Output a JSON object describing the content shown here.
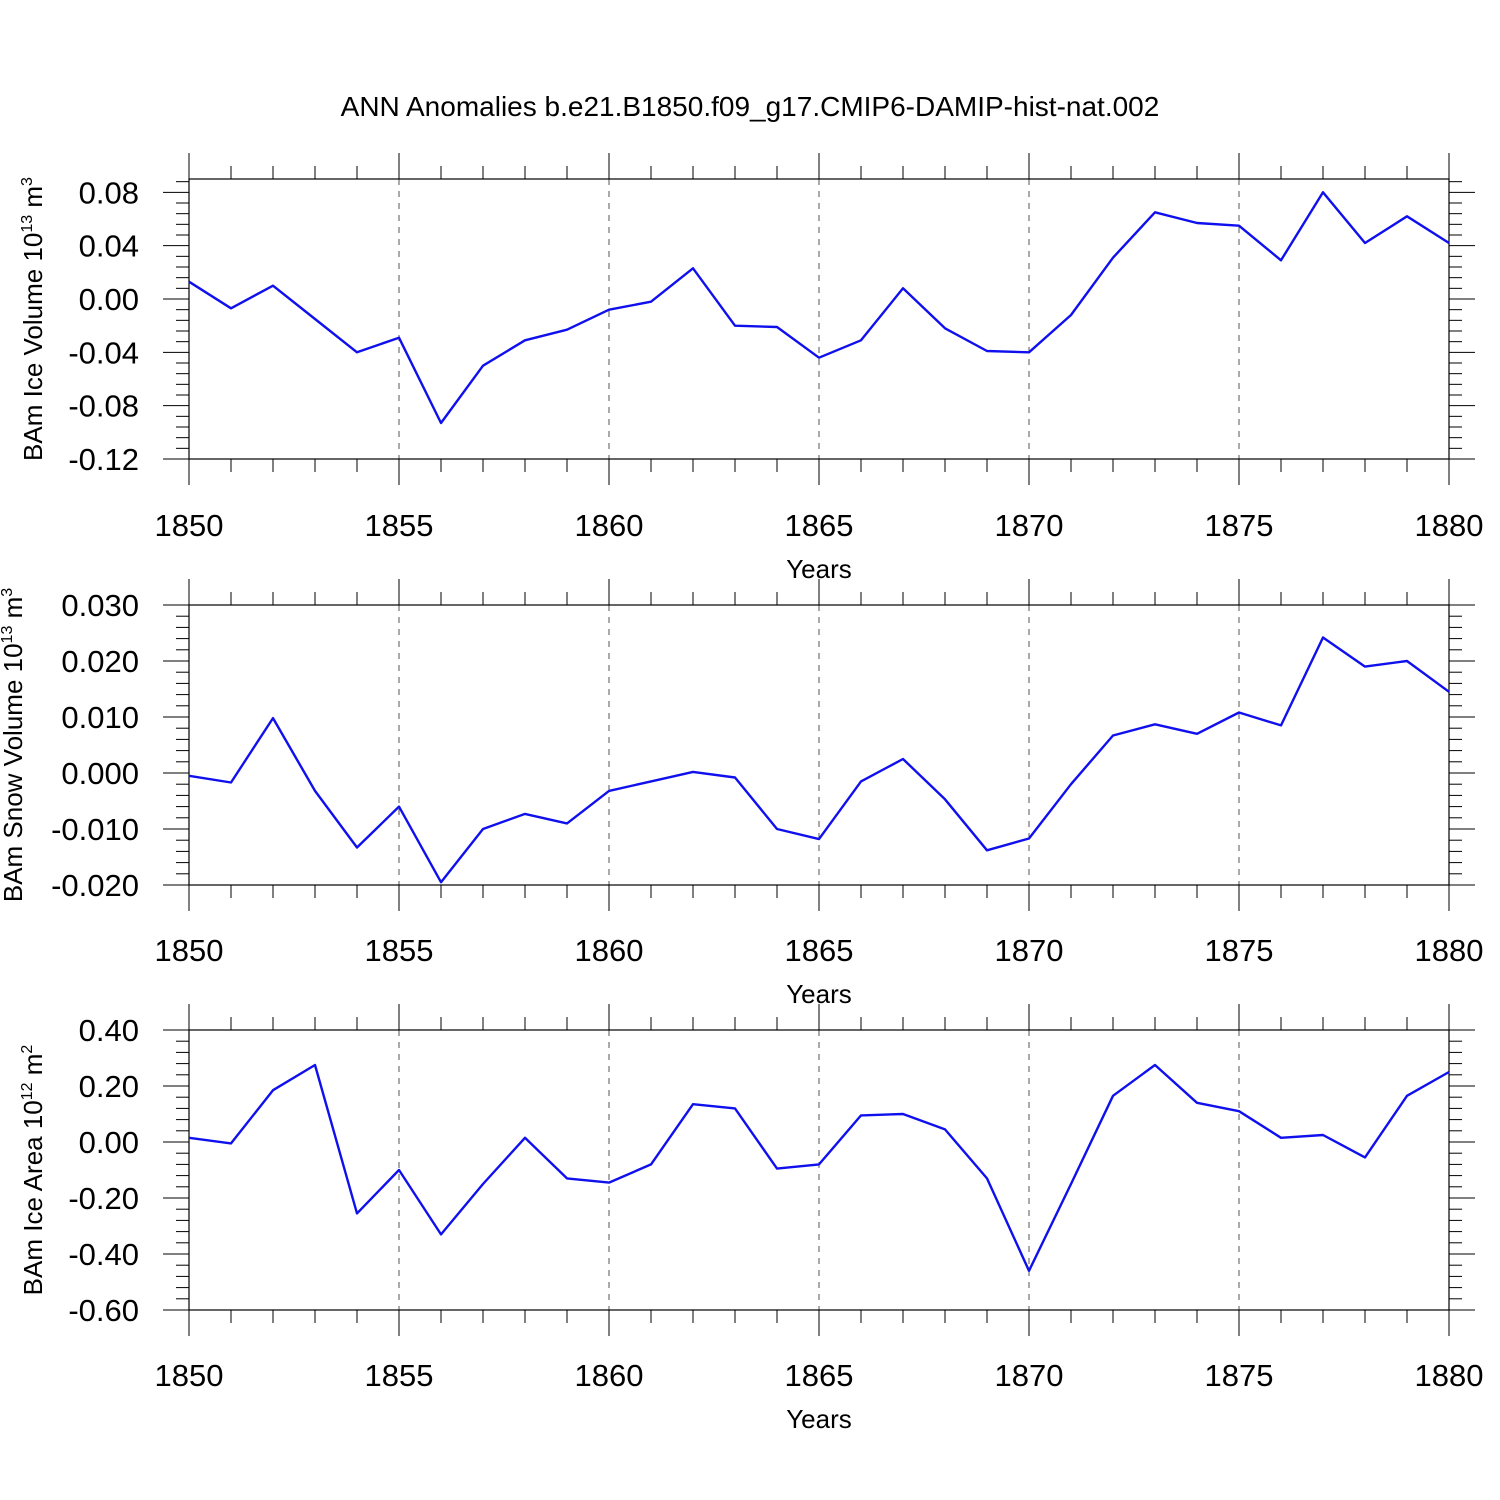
{
  "title": "ANN Anomalies b.e21.B1850.f09_g17.CMIP6-DAMIP-hist-nat.002",
  "colors": {
    "series": "#1010ee",
    "axis": "#000000",
    "grid": "#555555"
  },
  "chart_data": [
    {
      "type": "line",
      "name": "ice-volume",
      "ylabel": "BAm Ice Volume 10",
      "ylabel_exponent": "13",
      "ylabel_unit": "m",
      "ylabel_unit_exponent": "3",
      "xlabel": "Years",
      "xlim": [
        1850,
        1880
      ],
      "ylim": [
        -0.12,
        0.09
      ],
      "xticks": [
        1850,
        1855,
        1860,
        1865,
        1870,
        1875,
        1880
      ],
      "xtick_labels": [
        "1850",
        "1855",
        "1860",
        "1865",
        "1870",
        "1875",
        "1880"
      ],
      "yticks": [
        0.08,
        0.04,
        0.0,
        -0.04,
        -0.08,
        -0.12
      ],
      "ytick_labels": [
        "0.08",
        "0.04",
        "0.00",
        "-0.04",
        "-0.08",
        "-0.12"
      ],
      "x": [
        1850,
        1851,
        1852,
        1853,
        1854,
        1855,
        1856,
        1857,
        1858,
        1859,
        1860,
        1861,
        1862,
        1863,
        1864,
        1865,
        1866,
        1867,
        1868,
        1869,
        1870,
        1871,
        1872,
        1873,
        1874,
        1875,
        1876,
        1877,
        1878,
        1879,
        1880
      ],
      "values": [
        0.013,
        -0.007,
        0.01,
        -0.015,
        -0.04,
        -0.029,
        -0.093,
        -0.05,
        -0.031,
        -0.023,
        -0.008,
        -0.002,
        0.023,
        -0.02,
        -0.021,
        -0.044,
        -0.031,
        0.008,
        -0.022,
        -0.039,
        -0.04,
        -0.012,
        0.031,
        0.065,
        0.057,
        0.055,
        0.029,
        0.08,
        0.042,
        0.062,
        0.042
      ]
    },
    {
      "type": "line",
      "name": "snow-volume",
      "ylabel": "BAm Snow Volume 10",
      "ylabel_exponent": "13",
      "ylabel_unit": "m",
      "ylabel_unit_exponent": "3",
      "xlabel": "Years",
      "xlim": [
        1850,
        1880
      ],
      "ylim": [
        -0.02,
        0.03
      ],
      "xticks": [
        1850,
        1855,
        1860,
        1865,
        1870,
        1875,
        1880
      ],
      "xtick_labels": [
        "1850",
        "1855",
        "1860",
        "1865",
        "1870",
        "1875",
        "1880"
      ],
      "yticks": [
        0.03,
        0.02,
        0.01,
        0.0,
        -0.01,
        -0.02
      ],
      "ytick_labels": [
        "0.030",
        "0.020",
        "0.010",
        "0.000",
        "-0.010",
        "-0.020"
      ],
      "x": [
        1850,
        1851,
        1852,
        1853,
        1854,
        1855,
        1856,
        1857,
        1858,
        1859,
        1860,
        1861,
        1862,
        1863,
        1864,
        1865,
        1866,
        1867,
        1868,
        1869,
        1870,
        1871,
        1872,
        1873,
        1874,
        1875,
        1876,
        1877,
        1878,
        1879,
        1880
      ],
      "values": [
        -0.0005,
        -0.0017,
        0.0098,
        -0.0032,
        -0.0133,
        -0.006,
        -0.0195,
        -0.01,
        -0.0073,
        -0.009,
        -0.0032,
        -0.0015,
        0.0002,
        -0.0008,
        -0.01,
        -0.0118,
        -0.0015,
        0.0025,
        -0.0047,
        -0.0138,
        -0.0117,
        -0.002,
        0.0067,
        0.0087,
        0.007,
        0.0108,
        0.0085,
        0.0242,
        0.019,
        0.02,
        0.0145
      ]
    },
    {
      "type": "line",
      "name": "ice-area",
      "ylabel": "BAm Ice Area 10",
      "ylabel_exponent": "12",
      "ylabel_unit": "m",
      "ylabel_unit_exponent": "2",
      "xlabel": "Years",
      "xlim": [
        1850,
        1880
      ],
      "ylim": [
        -0.6,
        0.4
      ],
      "xticks": [
        1850,
        1855,
        1860,
        1865,
        1870,
        1875,
        1880
      ],
      "xtick_labels": [
        "1850",
        "1855",
        "1860",
        "1865",
        "1870",
        "1875",
        "1880"
      ],
      "yticks": [
        0.4,
        0.2,
        0.0,
        -0.2,
        -0.4,
        -0.6
      ],
      "ytick_labels": [
        "0.40",
        "0.20",
        "0.00",
        "-0.20",
        "-0.40",
        "-0.60"
      ],
      "x": [
        1850,
        1851,
        1852,
        1853,
        1854,
        1855,
        1856,
        1857,
        1858,
        1859,
        1860,
        1861,
        1862,
        1863,
        1864,
        1865,
        1866,
        1867,
        1868,
        1869,
        1870,
        1871,
        1872,
        1873,
        1874,
        1875,
        1876,
        1877,
        1878,
        1879,
        1880
      ],
      "values": [
        0.015,
        -0.005,
        0.185,
        0.275,
        -0.255,
        -0.1,
        -0.33,
        -0.15,
        0.015,
        -0.13,
        -0.145,
        -0.08,
        0.135,
        0.12,
        -0.095,
        -0.08,
        0.095,
        0.1,
        0.045,
        -0.13,
        -0.46,
        -0.15,
        0.165,
        0.275,
        0.14,
        0.11,
        0.015,
        0.025,
        -0.055,
        0.165,
        0.25
      ]
    }
  ]
}
